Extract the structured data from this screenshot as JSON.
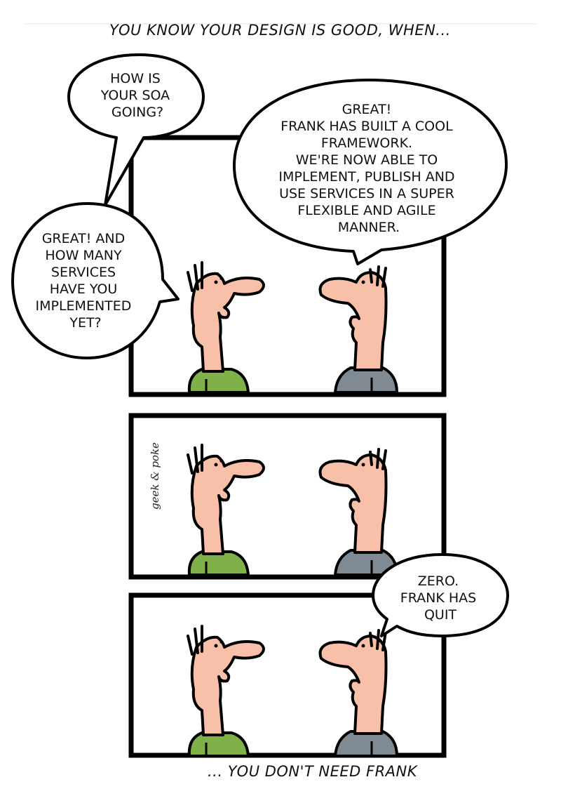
{
  "comic": {
    "caption_top": "YOU KNOW YOUR DESIGN IS GOOD, WHEN...",
    "caption_bottom": "... YOU DON'T NEED FRANK",
    "signature": "geek & poke",
    "panel1": {
      "bubble_question": [
        "HOW IS",
        "YOUR SOA",
        "GOING?"
      ],
      "bubble_answer": [
        "GREAT!",
        "FRANK HAS BUILT A COOL",
        "FRAMEWORK.",
        "WE'RE NOW ABLE TO",
        "IMPLEMENT, PUBLISH AND",
        "USE SERVICES IN A SUPER",
        "FLEXIBLE AND AGILE",
        "MANNER."
      ],
      "bubble_followup": [
        "GREAT!  AND",
        "HOW MANY",
        "SERVICES",
        "HAVE YOU",
        "IMPLEMENTED",
        "YET?"
      ]
    },
    "panel3": {
      "bubble_reply": [
        "ZERO.",
        "FRANK HAS",
        "QUIT"
      ]
    }
  },
  "colors": {
    "skin": "#f8c0a8",
    "left_shirt": "#7fb04a",
    "right_shirt": "#7f8a92",
    "outline": "#000000"
  }
}
